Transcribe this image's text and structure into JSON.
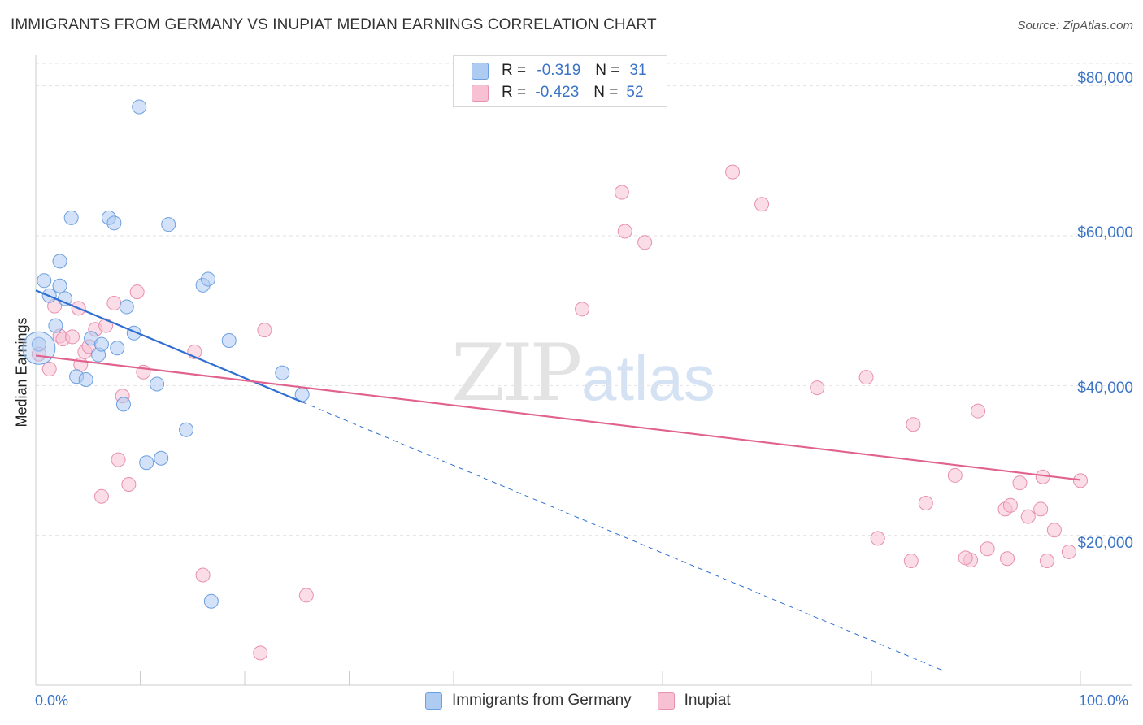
{
  "chart_data": {
    "type": "scatter",
    "title": "IMMIGRANTS FROM GERMANY VS INUPIAT MEDIAN EARNINGS CORRELATION CHART",
    "source": "Source: ZipAtlas.com",
    "xlabel": "",
    "ylabel": "Median Earnings",
    "xlim": [
      0,
      100
    ],
    "ylim": [
      0,
      83000
    ],
    "x_tick_labels": [
      "0.0%",
      "100.0%"
    ],
    "y_ticks": [
      20000,
      40000,
      60000,
      80000
    ],
    "y_tick_labels": [
      "$20,000",
      "$40,000",
      "$60,000",
      "$80,000"
    ],
    "grid": true,
    "watermark": "ZIPatlas",
    "legend": {
      "entries": [
        {
          "r_label": "R =",
          "r_value": "-0.319",
          "n_label": "N =",
          "n_value": "31"
        },
        {
          "r_label": "R =",
          "r_value": "-0.423",
          "n_label": "N =",
          "n_value": 52
        }
      ]
    },
    "series": [
      {
        "name": "Immigrants from Germany",
        "color": "#6b9fe0",
        "fill": "#aecbf2",
        "line_color": "#2f6fd1",
        "trend": {
          "x0": 0,
          "y0": 52700,
          "x1": 25.5,
          "y1": 37800,
          "dash_to_x": 87
        },
        "points": [
          [
            0.3,
            45500
          ],
          [
            0.8,
            54000
          ],
          [
            1.3,
            52000
          ],
          [
            1.9,
            48000
          ],
          [
            2.3,
            56600
          ],
          [
            2.3,
            53300
          ],
          [
            2.8,
            51600
          ],
          [
            3.4,
            62400
          ],
          [
            3.9,
            41200
          ],
          [
            4.8,
            40800
          ],
          [
            5.3,
            46300
          ],
          [
            6.0,
            44100
          ],
          [
            6.3,
            45500
          ],
          [
            7.0,
            62400
          ],
          [
            7.5,
            61700
          ],
          [
            7.8,
            45000
          ],
          [
            8.4,
            37500
          ],
          [
            8.7,
            50500
          ],
          [
            9.4,
            47000
          ],
          [
            9.9,
            77200
          ],
          [
            10.6,
            29700
          ],
          [
            11.6,
            40200
          ],
          [
            12.0,
            30300
          ],
          [
            12.7,
            61500
          ],
          [
            14.4,
            34100
          ],
          [
            16.0,
            53400
          ],
          [
            16.5,
            54200
          ],
          [
            16.8,
            11200
          ],
          [
            18.5,
            46000
          ],
          [
            23.6,
            41700
          ],
          [
            25.5,
            38800
          ]
        ]
      },
      {
        "name": "Inupiat",
        "color": "#e890ad",
        "fill": "#f7c1d3",
        "line_color": "#e0628d",
        "trend": {
          "x0": 0,
          "y0": 44000,
          "x1": 100,
          "y1": 27400
        },
        "points": [
          [
            0.3,
            44200
          ],
          [
            1.3,
            42200
          ],
          [
            1.8,
            50600
          ],
          [
            2.3,
            46600
          ],
          [
            2.6,
            46200
          ],
          [
            3.5,
            46500
          ],
          [
            4.1,
            50300
          ],
          [
            4.3,
            42800
          ],
          [
            4.7,
            44500
          ],
          [
            5.1,
            45200
          ],
          [
            5.7,
            47500
          ],
          [
            6.3,
            25200
          ],
          [
            6.7,
            48000
          ],
          [
            7.5,
            51000
          ],
          [
            7.9,
            30100
          ],
          [
            8.3,
            38600
          ],
          [
            8.9,
            26800
          ],
          [
            9.7,
            52500
          ],
          [
            10.3,
            41800
          ],
          [
            15.2,
            44500
          ],
          [
            16.0,
            14700
          ],
          [
            21.5,
            4300
          ],
          [
            21.9,
            47400
          ],
          [
            25.9,
            12000
          ],
          [
            52.3,
            50200
          ],
          [
            56.1,
            65800
          ],
          [
            56.4,
            60600
          ],
          [
            58.3,
            59100
          ],
          [
            66.7,
            68500
          ],
          [
            69.5,
            64200
          ],
          [
            74.8,
            39700
          ],
          [
            79.5,
            41100
          ],
          [
            80.6,
            19600
          ],
          [
            83.8,
            16600
          ],
          [
            84.0,
            34800
          ],
          [
            85.2,
            24300
          ],
          [
            88.0,
            28000
          ],
          [
            89.5,
            16700
          ],
          [
            90.2,
            36600
          ],
          [
            91.1,
            18200
          ],
          [
            92.8,
            23500
          ],
          [
            93.0,
            16900
          ],
          [
            93.3,
            24000
          ],
          [
            94.2,
            27000
          ],
          [
            95.0,
            22500
          ],
          [
            96.2,
            23500
          ],
          [
            96.4,
            27800
          ],
          [
            96.8,
            16600
          ],
          [
            97.5,
            20700
          ],
          [
            98.9,
            17800
          ],
          [
            100.0,
            27300
          ],
          [
            89.0,
            17000
          ]
        ]
      }
    ]
  }
}
